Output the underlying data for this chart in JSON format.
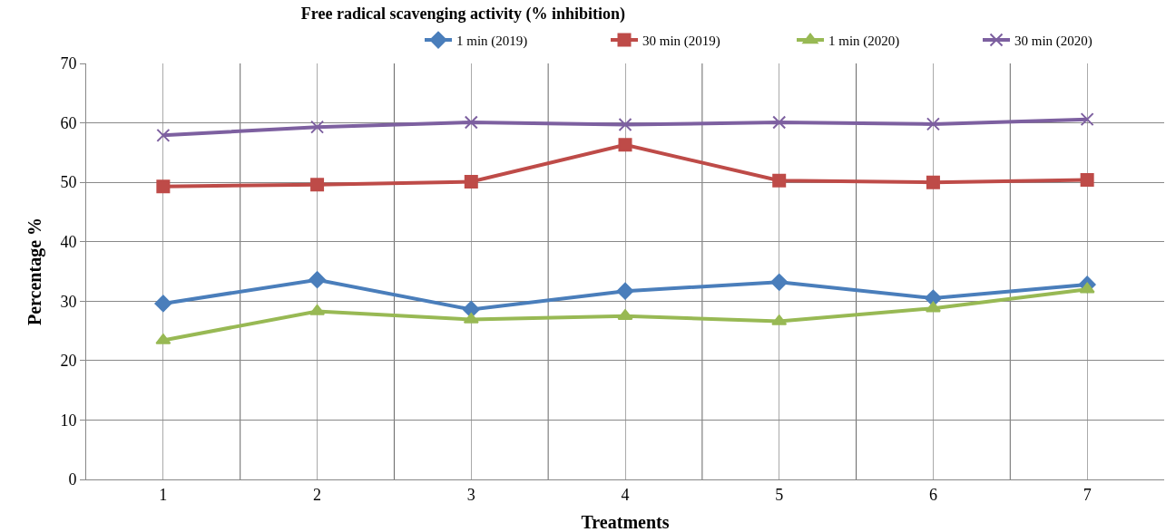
{
  "chart_data": {
    "type": "line",
    "title": "Free radical scavenging activity (% inhibition)",
    "xlabel": "Treatments",
    "ylabel": "Percentage %",
    "categories": [
      "1",
      "2",
      "3",
      "4",
      "5",
      "6",
      "7"
    ],
    "series": [
      {
        "name": "1 min (2019)",
        "color": "#4a7ebb",
        "marker": "diamond",
        "values": [
          29.6,
          33.6,
          28.6,
          31.7,
          33.2,
          30.5,
          32.8
        ]
      },
      {
        "name": "30 min (2019)",
        "color": "#be4b48",
        "marker": "square",
        "values": [
          49.3,
          49.6,
          50.1,
          56.3,
          50.3,
          50.0,
          50.4
        ]
      },
      {
        "name": "1 min (2020)",
        "color": "#98b954",
        "marker": "triangle",
        "values": [
          23.4,
          28.3,
          26.9,
          27.5,
          26.6,
          28.8,
          32.0
        ]
      },
      {
        "name": "30 min (2020)",
        "color": "#7d60a0",
        "marker": "cross",
        "values": [
          57.9,
          59.3,
          60.1,
          59.7,
          60.1,
          59.8,
          60.6
        ]
      }
    ],
    "ylim": [
      0,
      70
    ],
    "yticks": [
      0,
      10,
      20,
      30,
      40,
      50,
      60,
      70
    ],
    "grid": true,
    "legend": "top right",
    "line_style": "solid"
  }
}
